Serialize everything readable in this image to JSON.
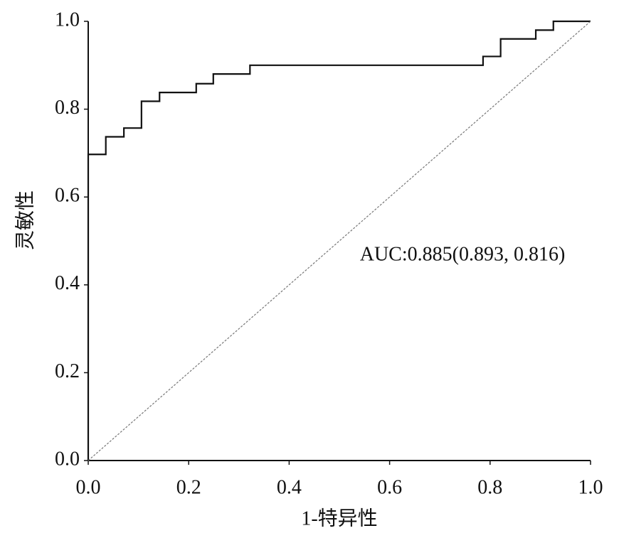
{
  "chart_data": {
    "type": "line",
    "x_label": "1-特异性",
    "y_label": "灵敏性",
    "annotation": "AUC:0.885(0.893, 0.816)",
    "xlim": [
      0,
      1
    ],
    "ylim": [
      0,
      1
    ],
    "xticks": [
      {
        "value": 0,
        "label": "0.0"
      },
      0.2,
      0.4,
      0.6,
      0.8,
      {
        "value": 1,
        "label": "1.0"
      }
    ],
    "yticks": [
      {
        "value": 0,
        "label": "0.0"
      },
      0.2,
      0.4,
      0.6,
      0.8,
      {
        "value": 1,
        "label": "1.0"
      }
    ],
    "grid": false,
    "series": [
      {
        "color": "#111111",
        "style": "solid",
        "x": [
          0,
          0,
          0.035,
          0.035,
          0.071,
          0.071,
          0.106,
          0.106,
          0.142,
          0.142,
          0.215,
          0.215,
          0.249,
          0.249,
          0.322,
          0.322,
          0.786,
          0.786,
          0.821,
          0.821,
          0.891,
          0.891,
          0.926,
          0.926,
          1
        ],
        "values": [
          0,
          0.697,
          0.697,
          0.737,
          0.737,
          0.757,
          0.757,
          0.818,
          0.818,
          0.838,
          0.838,
          0.858,
          0.858,
          0.88,
          0.88,
          0.9,
          0.9,
          0.92,
          0.92,
          0.96,
          0.96,
          0.98,
          0.98,
          1,
          1
        ]
      },
      {
        "color": "#777777",
        "style": "dashed",
        "x": [
          0,
          1
        ],
        "values": [
          0,
          1
        ]
      }
    ]
  }
}
